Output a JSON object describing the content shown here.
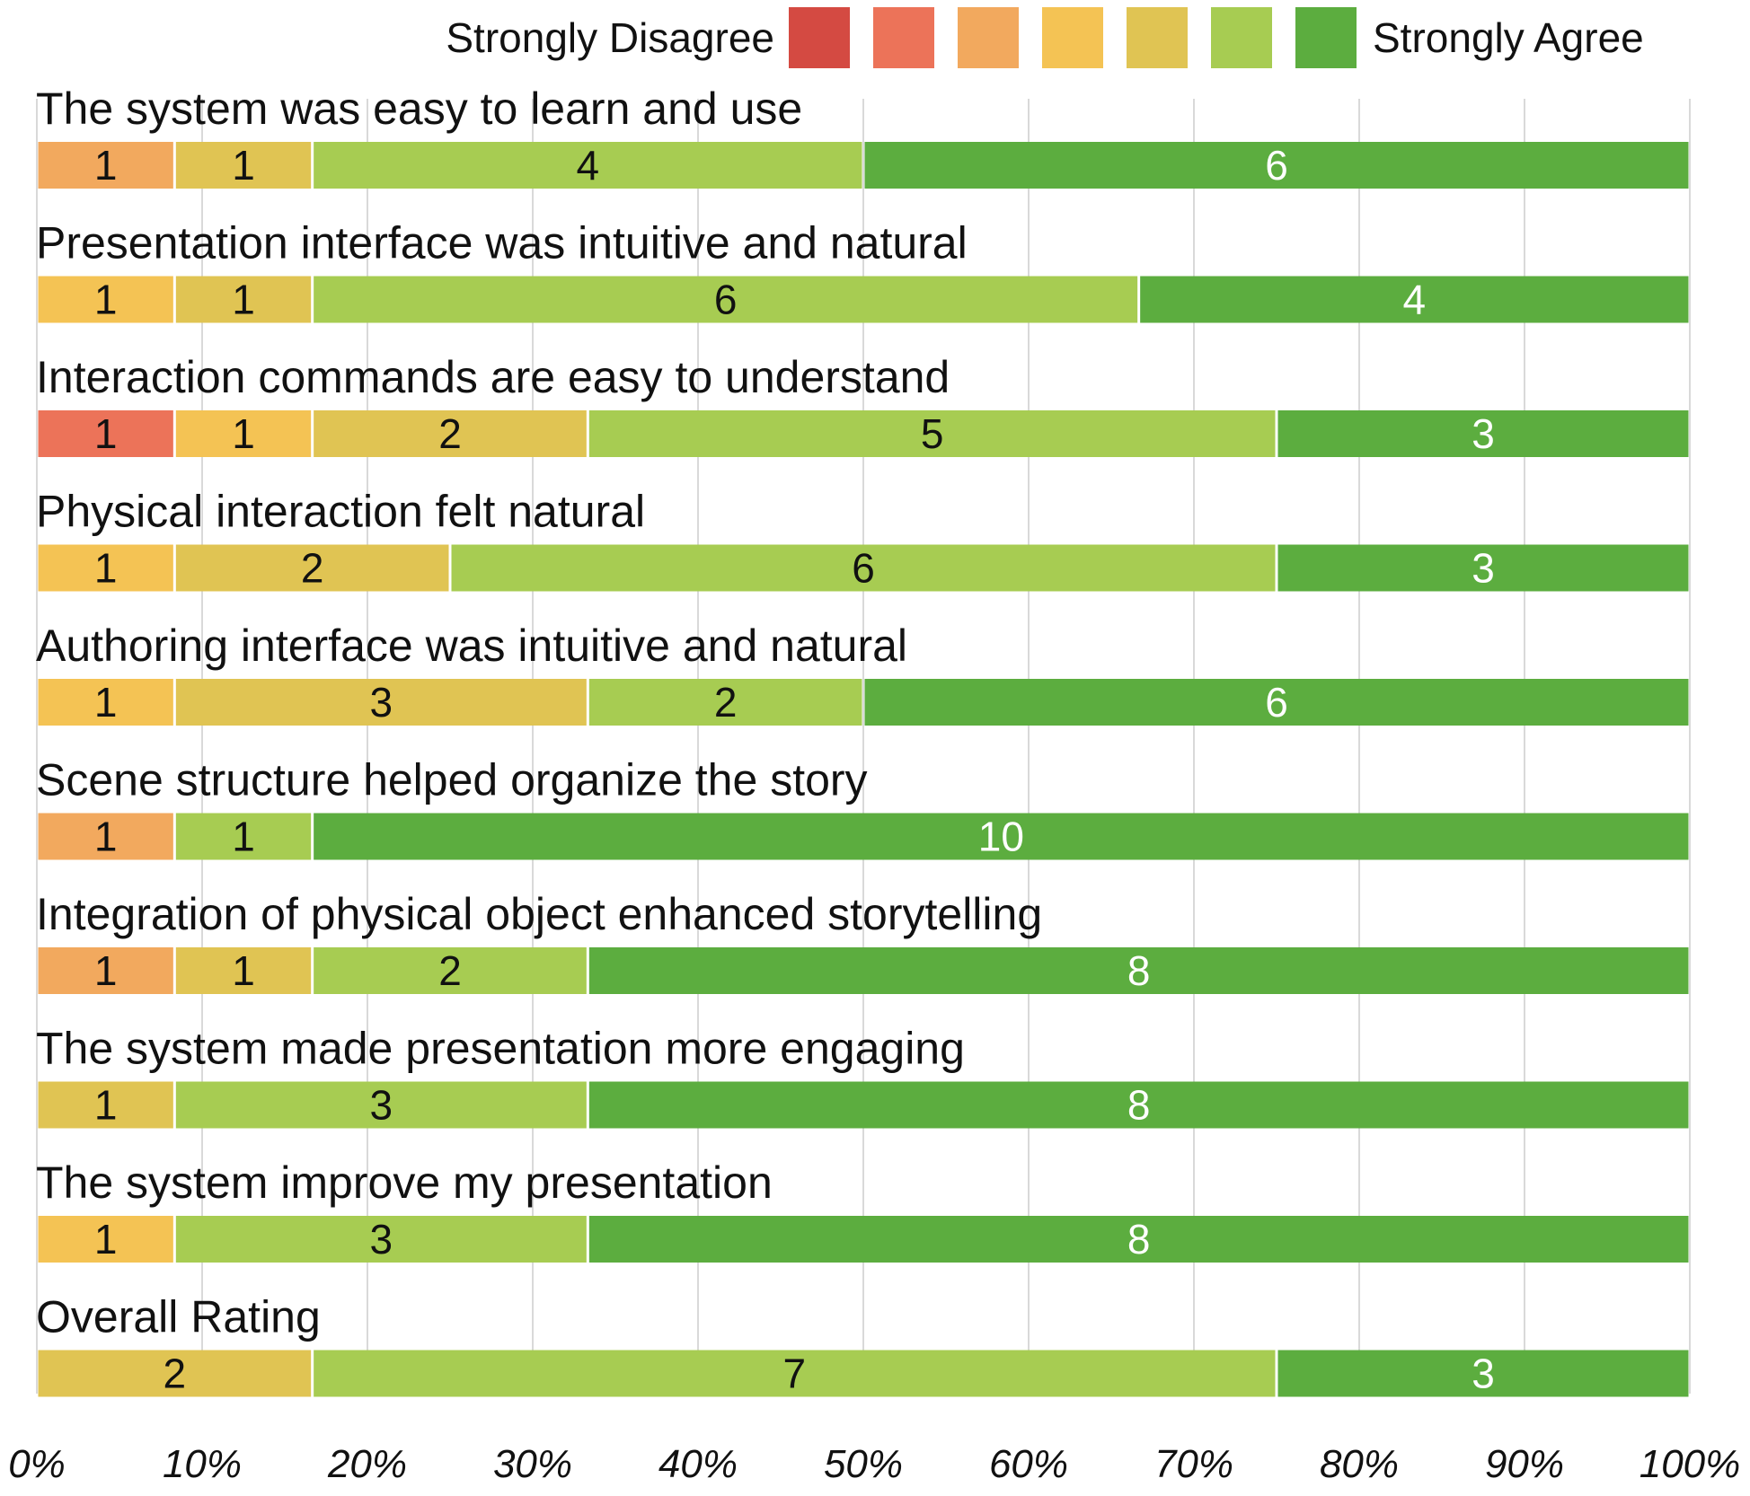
{
  "chart_data": {
    "type": "bar",
    "orientation": "horizontal",
    "stacked": "100%",
    "scale_max": 12,
    "legend": {
      "left_label": "Strongly Disagree",
      "right_label": "Strongly Agree",
      "placement": "top-right",
      "levels": 7
    },
    "colors": [
      "#d44a42",
      "#ec7359",
      "#f2a95e",
      "#f4c354",
      "#e0c453",
      "#a7cc52",
      "#5cad3f"
    ],
    "label_colors": [
      "#111111",
      "#111111",
      "#111111",
      "#111111",
      "#111111",
      "#111111",
      "#ffffff"
    ],
    "categories": [
      "The system was easy to learn and use",
      "Presentation interface was intuitive and natural",
      "Interaction commands are easy to understand",
      "Physical interaction felt natural",
      "Authoring interface was intuitive and natural",
      "Scene structure helped organize the story",
      "Integration of physical object enhanced storytelling",
      "The system made presentation more engaging",
      "The system improve my presentation",
      "Overall Rating"
    ],
    "series": [
      {
        "name": "Level 1 (Strongly Disagree)",
        "values": [
          0,
          0,
          0,
          0,
          0,
          0,
          0,
          0,
          0,
          0
        ]
      },
      {
        "name": "Level 2",
        "values": [
          0,
          0,
          1,
          0,
          0,
          0,
          0,
          0,
          0,
          0
        ]
      },
      {
        "name": "Level 3",
        "values": [
          1,
          0,
          0,
          0,
          0,
          1,
          1,
          0,
          0,
          0
        ]
      },
      {
        "name": "Level 4",
        "values": [
          0,
          1,
          1,
          1,
          1,
          0,
          0,
          0,
          1,
          0
        ]
      },
      {
        "name": "Level 5",
        "values": [
          1,
          1,
          2,
          2,
          3,
          0,
          1,
          1,
          0,
          2
        ]
      },
      {
        "name": "Level 6",
        "values": [
          4,
          6,
          5,
          6,
          2,
          1,
          2,
          3,
          3,
          7
        ]
      },
      {
        "name": "Level 7 (Strongly Agree)",
        "values": [
          6,
          4,
          3,
          3,
          6,
          10,
          8,
          8,
          8,
          3
        ]
      }
    ],
    "xlim": [
      0,
      100
    ],
    "x_ticks": [
      "0%",
      "10%",
      "20%",
      "30%",
      "40%",
      "50%",
      "60%",
      "70%",
      "80%",
      "90%",
      "100%"
    ],
    "grid": "vertical"
  }
}
